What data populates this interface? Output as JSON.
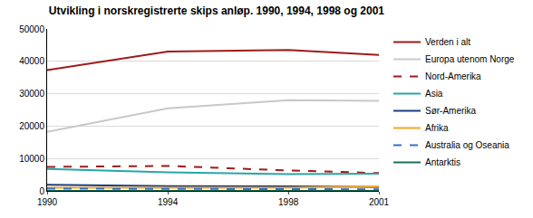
{
  "chart_data": {
    "type": "line",
    "title": "Utvikling i norskregistrerte skips anløp. 1990, 1994, 1998 og 2001",
    "x": [
      1990,
      1994,
      1998,
      2001
    ],
    "xlim": [
      1990,
      2001
    ],
    "xticks": [
      1990,
      1994,
      1998,
      2001
    ],
    "ylim": [
      0,
      50000
    ],
    "yticks": [
      0,
      10000,
      20000,
      30000,
      40000,
      50000
    ],
    "grid": true,
    "legend": "right",
    "series": [
      {
        "name": "Verden i alt",
        "color": "#9e1b1b",
        "line_style": "solid",
        "values": [
          37300,
          43000,
          43500,
          42000
        ]
      },
      {
        "name": "Europa utenom Norge",
        "color": "#c8c8c8",
        "line_style": "solid",
        "values": [
          18200,
          25500,
          28000,
          27800
        ]
      },
      {
        "name": "Nord-Amerika",
        "color": "#9e1b1b",
        "line_style": "dashed",
        "values": [
          7400,
          7700,
          6300,
          5500
        ]
      },
      {
        "name": "Asia",
        "color": "#2aa5a5",
        "line_style": "solid",
        "values": [
          6800,
          5700,
          5200,
          5300
        ]
      },
      {
        "name": "Sør-Amerika",
        "color": "#1c3f80",
        "line_style": "solid",
        "values": [
          1900,
          1500,
          1400,
          1200
        ]
      },
      {
        "name": "Afrika",
        "color": "#f5a623",
        "line_style": "solid",
        "values": [
          1000,
          900,
          1000,
          1300
        ]
      },
      {
        "name": "Australia og Oseania",
        "color": "#3a6fc4",
        "line_style": "dashed",
        "values": [
          700,
          600,
          500,
          500
        ]
      },
      {
        "name": "Antarktis",
        "color": "#1a6e5a",
        "line_style": "solid",
        "values": [
          0,
          0,
          0,
          0
        ]
      }
    ]
  }
}
